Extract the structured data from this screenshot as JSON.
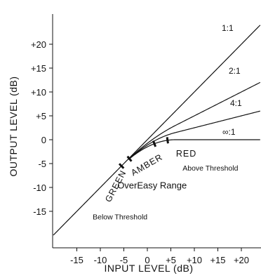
{
  "chart_data": {
    "type": "line",
    "title": "",
    "xlabel": "INPUT LEVEL (dB)",
    "ylabel": "OUTPUT LEVEL (dB)",
    "xlim": [
      -20,
      24
    ],
    "ylim": [
      -20,
      24
    ],
    "x_ticks": [
      -15,
      -10,
      -5,
      0,
      5,
      10,
      15,
      20
    ],
    "x_tick_labels": [
      "-15",
      "-10",
      "-5",
      "0",
      "+5",
      "+10",
      "+15",
      "+20"
    ],
    "y_ticks": [
      -15,
      -10,
      -5,
      0,
      5,
      10,
      15,
      20
    ],
    "y_tick_labels": [
      "-15",
      "-10",
      "-5",
      "0",
      "+5",
      "+10",
      "+15",
      "+20"
    ],
    "threshold": 0,
    "knee_start": -6,
    "knee_end": 6,
    "series": [
      {
        "name": "1:1",
        "ratio": 1
      },
      {
        "name": "2:1",
        "ratio": 2
      },
      {
        "name": "4:1",
        "ratio": 4
      },
      {
        "name": "∞:1",
        "ratio": "infinity"
      }
    ],
    "knee_markers": [
      -5.5,
      -3.8,
      1.5,
      4.3
    ],
    "zones": [
      {
        "name": "GREEN",
        "x": -6.2,
        "y": -10
      },
      {
        "name": "AMBER",
        "x": 0.2,
        "y": -5.8
      },
      {
        "name": "RED",
        "x": 8.3,
        "y": -3.5
      }
    ],
    "regions": [
      {
        "name": "Above Threshold",
        "x": 7.5,
        "y": -6.5
      },
      {
        "name": "OverEasy Range",
        "x": 1,
        "y": -10.2
      },
      {
        "name": "Below Threshold",
        "x": -5.8,
        "y": -16.7
      }
    ]
  }
}
